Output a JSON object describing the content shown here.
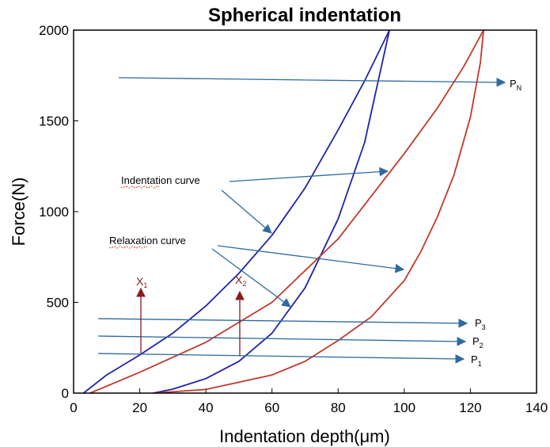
{
  "chart_data": {
    "type": "line",
    "title": "Spherical indentation",
    "xlabel": "Indentation depth(μm)",
    "ylabel": "Force(N)",
    "xlim": [
      0,
      140
    ],
    "ylim": [
      0,
      2000
    ],
    "xticks": [
      0,
      20,
      40,
      60,
      80,
      100,
      120,
      140
    ],
    "yticks": [
      0,
      500,
      1000,
      1500,
      2000
    ],
    "grid": false,
    "colors": {
      "blue": "#1f24a6",
      "red": "#c0392b",
      "arrow": "#2e6a9e",
      "mark": "#8b1a1a"
    },
    "series": [
      {
        "color": "blue",
        "x": [
          3,
          10,
          20,
          30,
          40,
          50,
          60,
          70,
          80,
          88,
          95.5
        ],
        "y": [
          0,
          100,
          210,
          330,
          480,
          660,
          870,
          1130,
          1450,
          1720,
          2000
        ]
      },
      {
        "color": "blue",
        "x": [
          24,
          30,
          40,
          50,
          60,
          70,
          80,
          88,
          95.5
        ],
        "y": [
          0,
          22,
          80,
          175,
          330,
          580,
          960,
          1380,
          2000
        ]
      },
      {
        "color": "red",
        "x": [
          5,
          20,
          40,
          60,
          80,
          100,
          110,
          118,
          124
        ],
        "y": [
          0,
          115,
          280,
          500,
          850,
          1320,
          1570,
          1800,
          2000
        ]
      },
      {
        "color": "red",
        "x": [
          24,
          40,
          60,
          70,
          80,
          90,
          100,
          105,
          110,
          115,
          120,
          123,
          124
        ],
        "y": [
          0,
          20,
          100,
          175,
          290,
          420,
          620,
          780,
          970,
          1200,
          1520,
          1820,
          2000
        ]
      }
    ],
    "annotations": {
      "indentation_curve": "Indentation curve",
      "relaxation_curve": "Relaxation curve",
      "p_n": "P",
      "p_n_sub": "N",
      "p3": "P",
      "p3_sub": "3",
      "p2": "P",
      "p2_sub": "2",
      "p1": "P",
      "p1_sub": "1",
      "x1": "X",
      "x1_sub": "1",
      "x2": "X",
      "x2_sub": "2"
    }
  }
}
